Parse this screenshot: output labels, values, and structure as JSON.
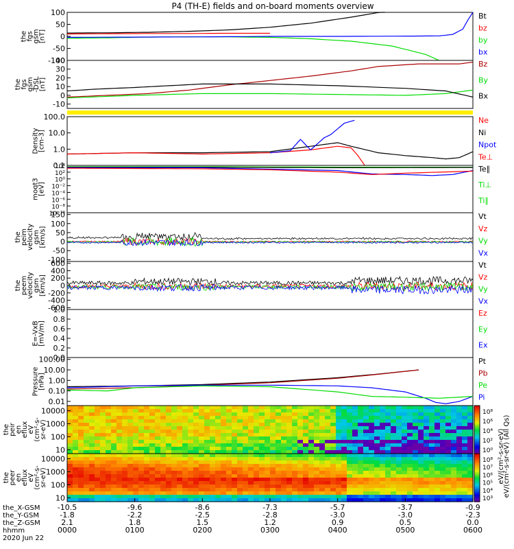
{
  "title": "P4 (TH-E) fields and on-board moments overview",
  "colors": {
    "black": "#000000",
    "red": "#ff0000",
    "darkred": "#aa0000",
    "green": "#00dd00",
    "blue": "#0000ff",
    "yellow": "#ffee00"
  },
  "chart_data": [
    {
      "type": "line",
      "ylabel": [
        "the",
        "fgs",
        "gsm",
        "[nT]"
      ],
      "yticks": [
        "100",
        "50",
        "0",
        "-50",
        "-100"
      ],
      "ylim": [
        -100,
        100
      ],
      "legend": [
        {
          "name": "Bt",
          "color": "black"
        },
        {
          "name": "bz",
          "color": "red"
        },
        {
          "name": "by",
          "color": "green"
        },
        {
          "name": "bx",
          "color": "blue"
        }
      ],
      "series": [
        {
          "name": "Bt",
          "color": "black",
          "x": [
            0,
            60,
            120,
            180,
            240,
            300,
            360,
            420,
            470
          ],
          "values": [
            14,
            15,
            17,
            21,
            27,
            38,
            55,
            80,
            104
          ]
        },
        {
          "name": "bz",
          "color": "red",
          "x": [
            0,
            60,
            120,
            180,
            240,
            300
          ],
          "values": [
            10,
            11,
            12,
            12,
            13,
            13
          ]
        },
        {
          "name": "by",
          "color": "green",
          "x": [
            0,
            60,
            120,
            180,
            240,
            300,
            360,
            420,
            480,
            530,
            550
          ],
          "values": [
            -8,
            -6,
            -3,
            -2,
            -2,
            -4,
            -10,
            -20,
            -40,
            -75,
            -100
          ]
        },
        {
          "name": "bx",
          "color": "blue",
          "x": [
            0,
            100,
            200,
            300,
            400,
            500,
            550,
            570,
            585,
            593,
            600
          ],
          "values": [
            -4,
            -3,
            -2,
            0,
            0,
            1,
            2,
            8,
            30,
            70,
            100
          ]
        }
      ]
    },
    {
      "type": "line",
      "ylabel": [
        "the",
        "fgs",
        "gsm",
        "-DSL",
        "[nT]"
      ],
      "yticks": [
        "40",
        "30",
        "20",
        "10",
        "0",
        "-10"
      ],
      "ylim": [
        -15,
        40
      ],
      "legend": [
        {
          "name": "Bz",
          "color": "darkred"
        },
        {
          "name": "By",
          "color": "green"
        },
        {
          "name": "Bx",
          "color": "black"
        }
      ],
      "series": [
        {
          "name": "Bz",
          "color": "darkred",
          "x": [
            0,
            60,
            120,
            180,
            240,
            300,
            360,
            420,
            460,
            520,
            580,
            600
          ],
          "values": [
            -2,
            0,
            2,
            6,
            12,
            17,
            22,
            28,
            33,
            36,
            36,
            38
          ]
        },
        {
          "name": "By",
          "color": "green",
          "x": [
            0,
            100,
            200,
            300,
            400,
            500,
            560,
            600
          ],
          "values": [
            -3,
            0,
            2,
            2,
            1,
            0,
            2,
            6
          ]
        },
        {
          "name": "Bx",
          "color": "black",
          "x": [
            0,
            40,
            100,
            150,
            200,
            300,
            400,
            500,
            560,
            600
          ],
          "values": [
            5,
            7,
            9,
            11,
            13,
            13,
            11,
            8,
            5,
            -2
          ]
        }
      ]
    },
    {
      "type": "line",
      "ylabel": [
        "Density",
        "[cm-3]"
      ],
      "yticks": [
        "100.0",
        "10.0",
        "1.0",
        "0.1"
      ],
      "ylim": [
        0.1,
        100
      ],
      "ylog": true,
      "legend": [
        {
          "name": "Ne",
          "color": "red"
        },
        {
          "name": "Ni",
          "color": "black"
        },
        {
          "name": "Npot",
          "color": "blue"
        },
        {
          "name": "Te⊥",
          "color": "red"
        }
      ],
      "series": [
        {
          "name": "Ni",
          "color": "black",
          "x": [
            0,
            100,
            200,
            300,
            360,
            400,
            420,
            460,
            500,
            540,
            560,
            580,
            600
          ],
          "values": [
            0.5,
            0.6,
            0.6,
            0.7,
            1.5,
            2.5,
            1.5,
            0.6,
            0.4,
            0.3,
            0.25,
            0.3,
            0.7
          ]
        },
        {
          "name": "Ne",
          "color": "red",
          "x": [
            0,
            100,
            200,
            300,
            360,
            400,
            420,
            430,
            440
          ],
          "values": [
            0.5,
            0.6,
            0.5,
            0.6,
            0.9,
            1.5,
            1.2,
            0.4,
            0.1
          ]
        },
        {
          "name": "Npot",
          "color": "blue",
          "x": [
            300,
            330,
            345,
            360,
            380,
            390,
            410,
            425
          ],
          "values": [
            0.6,
            0.8,
            4,
            0.9,
            5,
            8,
            40,
            60
          ]
        }
      ]
    },
    {
      "type": "line",
      "ylabel": [
        "moqt3",
        "[eV]"
      ],
      "yticks": [
        "10⁴",
        "10²",
        "10⁰",
        "10⁻²",
        "10⁻⁴",
        "10⁻⁶",
        "10⁻⁸",
        "10⁻¹⁰"
      ],
      "ylim": [
        1e-10,
        10000.0
      ],
      "ylog": true,
      "legend": [
        {
          "name": "Te∥",
          "color": "black"
        },
        {
          "name": "Ti⊥",
          "color": "green"
        },
        {
          "name": "Ti∥",
          "color": "green"
        }
      ],
      "series": [
        {
          "name": "Ti",
          "color": "green",
          "x": [
            0,
            200,
            400,
            600
          ],
          "values": [
            4000,
            4000,
            3000,
            3000
          ]
        },
        {
          "name": "Ti2",
          "color": "black",
          "x": [
            0,
            200,
            400,
            600
          ],
          "values": [
            3000,
            3000,
            2000,
            2500
          ]
        },
        {
          "name": "Te",
          "color": "blue",
          "x": [
            0,
            200,
            400,
            450,
            500,
            540,
            570,
            600
          ],
          "values": [
            2000,
            2000,
            300,
            30,
            20,
            10,
            20,
            300
          ]
        },
        {
          "name": "Te2",
          "color": "red",
          "x": [
            0,
            200,
            300,
            400,
            450,
            500,
            600
          ],
          "values": [
            1500,
            1000,
            500,
            100,
            20,
            50,
            200
          ]
        }
      ]
    },
    {
      "type": "line",
      "ylabel": [
        "the",
        "peim",
        "velocity",
        "gsm",
        "[km/s]"
      ],
      "yticks": [
        "150",
        "100",
        "50",
        "0",
        "-50",
        "-100"
      ],
      "ylim": [
        -110,
        160
      ],
      "legend": [
        {
          "name": "Vt",
          "color": "black"
        },
        {
          "name": "Vz",
          "color": "red"
        },
        {
          "name": "Vy",
          "color": "green"
        },
        {
          "name": "Vx",
          "color": "blue"
        }
      ]
    },
    {
      "type": "line",
      "ylabel": [
        "the",
        "peem",
        "velocity",
        "gsm",
        "[km/s]"
      ],
      "yticks": [
        "600",
        "400",
        "200",
        "0",
        "-200",
        "-400",
        "-600"
      ],
      "ylim": [
        -650,
        650
      ],
      "legend": [
        {
          "name": "Vt",
          "color": "black"
        },
        {
          "name": "Vz",
          "color": "red"
        },
        {
          "name": "Vy",
          "color": "green"
        },
        {
          "name": "Vx",
          "color": "blue"
        }
      ]
    },
    {
      "type": "line",
      "ylabel": [
        "E=-VxB",
        "[mV/m]"
      ],
      "yticks": [
        "1.0",
        "0.8",
        "0.6",
        "0.4",
        "0.2",
        "0.0"
      ],
      "ylim": [
        0,
        1
      ],
      "legend": [
        {
          "name": "Ez",
          "color": "red"
        },
        {
          "name": "Ey",
          "color": "green"
        },
        {
          "name": "Ex",
          "color": "blue"
        }
      ]
    },
    {
      "type": "line",
      "ylabel": [
        "Pressure",
        "[nPa]"
      ],
      "yticks": [
        "100.00",
        "10.00",
        "1.00",
        "0.10",
        "0.01"
      ],
      "ylim": [
        0.004,
        150
      ],
      "ylog": true,
      "legend": [
        {
          "name": "Pt",
          "color": "black"
        },
        {
          "name": "Pb",
          "color": "darkred"
        },
        {
          "name": "Pe",
          "color": "green"
        },
        {
          "name": "Pi",
          "color": "blue"
        }
      ],
      "series": [
        {
          "name": "Pt",
          "color": "black",
          "x": [
            0,
            100,
            200,
            300,
            400,
            460,
            520
          ],
          "values": [
            0.25,
            0.3,
            0.4,
            0.7,
            1.8,
            4,
            10
          ]
        },
        {
          "name": "Pb",
          "color": "darkred",
          "x": [
            0,
            100,
            200,
            300,
            400,
            460,
            520
          ],
          "values": [
            0.15,
            0.2,
            0.35,
            0.6,
            1.6,
            3.8,
            10
          ]
        },
        {
          "name": "Pi",
          "color": "blue",
          "x": [
            0,
            100,
            200,
            300,
            400,
            450,
            500,
            530,
            545,
            560,
            580,
            600
          ],
          "values": [
            0.2,
            0.3,
            0.35,
            0.35,
            0.3,
            0.2,
            0.08,
            0.02,
            0.008,
            0.006,
            0.01,
            0.03
          ]
        },
        {
          "name": "Pe",
          "color": "green",
          "x": [
            0,
            60,
            100,
            200,
            300,
            400,
            450,
            500,
            550,
            600
          ],
          "values": [
            0.12,
            0.1,
            0.2,
            0.3,
            0.25,
            0.08,
            0.03,
            0.025,
            0.02,
            0.03
          ]
        }
      ]
    },
    {
      "type": "heatmap",
      "ylabel": [
        "the",
        "peir",
        "en",
        "eflux",
        "eV",
        "(cm²-s-",
        "sr-eV)"
      ],
      "yticks": [
        "10000",
        "1000",
        "100",
        "10"
      ],
      "ylim": [
        5,
        25000
      ],
      "ylog": true
    },
    {
      "type": "heatmap",
      "ylabel": [
        "the",
        "peer",
        "en",
        "eflux",
        "eV",
        "(cm²-s-",
        "sr-eV)"
      ],
      "yticks": [
        "10000",
        "1000",
        "100",
        "10"
      ],
      "ylim": [
        5,
        25000
      ],
      "ylog": true
    }
  ],
  "colorbar": {
    "label1": "eV/(cm²-s-sr-eV) (All Qs)",
    "label2": "eV/(cm²-s-sr-eV)",
    "ticks1": [
      "10⁸",
      "10⁶",
      "10⁴",
      "10²",
      "10⁰"
    ],
    "ticks2": [
      "10⁸",
      "10⁷",
      "10⁶",
      "10⁵",
      "10⁴",
      "10³"
    ]
  },
  "xaxis": {
    "row_labels": [
      "the_X-GSM",
      "the_Y-GSM",
      "the_Z-GSM",
      "hhmm",
      "2020 Jun 22"
    ],
    "ticks": [
      {
        "x": 0,
        "vals": [
          "-10.5",
          "-1.8",
          "2.1",
          "0000"
        ]
      },
      {
        "x": 100,
        "vals": [
          "-9.6",
          "-2.2",
          "1.8",
          "0100"
        ]
      },
      {
        "x": 200,
        "vals": [
          "-8.6",
          "-2.5",
          "1.5",
          "0200"
        ]
      },
      {
        "x": 300,
        "vals": [
          "-7.3",
          "-2.8",
          "1.2",
          "0300"
        ]
      },
      {
        "x": 400,
        "vals": [
          "-5.7",
          "-3.0",
          "0.9",
          "0400"
        ]
      },
      {
        "x": 500,
        "vals": [
          "-3.7",
          "-3.0",
          "0.5",
          "0500"
        ]
      },
      {
        "x": 600,
        "vals": [
          "-0.9",
          "-2.3",
          "0.0",
          "0600"
        ]
      }
    ],
    "xlim": [
      0,
      600
    ]
  }
}
